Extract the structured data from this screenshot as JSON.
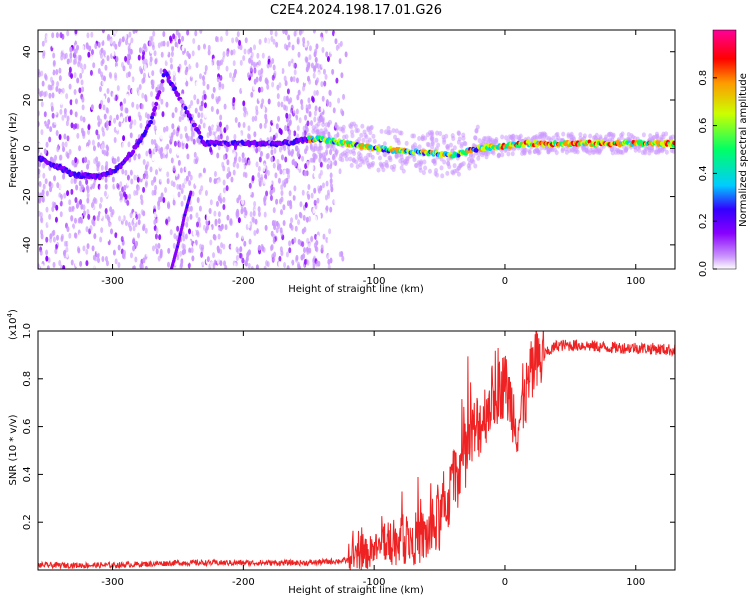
{
  "title": "C2E4.2024.198.17.01.G26",
  "chart_data": [
    {
      "type": "heatmap",
      "name": "spectrogram",
      "xlabel": "Height of straight line (km)",
      "ylabel": "Frequency (Hz)",
      "xlim": [
        -357,
        130
      ],
      "ylim": [
        -50,
        49
      ],
      "xticks": [
        -300,
        -200,
        -100,
        0,
        100
      ],
      "xtick_labels": [
        "-300",
        "-200",
        "-100",
        "0",
        "100"
      ],
      "yticks": [
        -40,
        -20,
        0,
        20,
        40
      ],
      "ytick_labels": [
        "-40",
        "-20",
        "0",
        "20",
        "40"
      ],
      "colorbar": {
        "label": "Normalized spectral amplitude",
        "range": [
          0,
          1
        ],
        "ticks": [
          0.0,
          0.2,
          0.4,
          0.6,
          0.8
        ],
        "tick_labels": [
          "0.0",
          "0.2",
          "0.4",
          "0.6",
          "0.8"
        ],
        "colors": [
          "#ffffff",
          "#cc99ff",
          "#8800ff",
          "#3300ff",
          "#00ccff",
          "#00ff66",
          "#ccff00",
          "#ff9900",
          "#ff0000",
          "#ff0099"
        ]
      },
      "features": [
        {
          "name": "main signal trace",
          "x": [
            -357,
            -340,
            -330,
            -310,
            -295,
            -280,
            -270,
            -260,
            -230,
            -200,
            -170,
            -145,
            -120,
            -100,
            -80,
            -60,
            -40,
            -20,
            0,
            20,
            60,
            100,
            130
          ],
          "y": [
            -4,
            -8,
            -11,
            -12,
            -8,
            2,
            12,
            32,
            2,
            2,
            2,
            4,
            2,
            0,
            -1,
            -2,
            -3,
            0,
            1,
            2,
            2,
            2,
            2
          ]
        },
        {
          "name": "secondary trace",
          "x": [
            -255,
            -250,
            -245,
            -240
          ],
          "y": [
            -50,
            -40,
            -28,
            -18
          ]
        }
      ]
    },
    {
      "type": "line",
      "name": "snr",
      "xlabel": "Height of straight line (km)",
      "ylabel": "SNR (10 * v/v)",
      "yscale_label": "(x10",
      "yscale_exp": "4",
      "yscale_close": ")",
      "xlim": [
        -357,
        130
      ],
      "ylim": [
        0,
        1.0
      ],
      "xticks": [
        -300,
        -200,
        -100,
        0,
        100
      ],
      "xtick_labels": [
        "-300",
        "-200",
        "-100",
        "0",
        "100"
      ],
      "yticks": [
        0.2,
        0.4,
        0.6,
        0.8,
        1.0
      ],
      "ytick_labels": [
        "0.2",
        "0.4",
        "0.6",
        "0.8",
        "1.0"
      ],
      "color": "#ee2222",
      "series": [
        {
          "name": "SNR",
          "x": [
            -357,
            -300,
            -250,
            -200,
            -150,
            -120,
            -100,
            -80,
            -60,
            -50,
            -40,
            -30,
            -20,
            -10,
            0,
            10,
            20,
            30,
            40,
            60,
            80,
            100,
            130
          ],
          "values": [
            0.02,
            0.02,
            0.03,
            0.03,
            0.03,
            0.04,
            0.08,
            0.12,
            0.14,
            0.2,
            0.35,
            0.5,
            0.6,
            0.72,
            0.78,
            0.6,
            0.82,
            0.9,
            0.94,
            0.94,
            0.93,
            0.93,
            0.92
          ]
        }
      ]
    }
  ]
}
